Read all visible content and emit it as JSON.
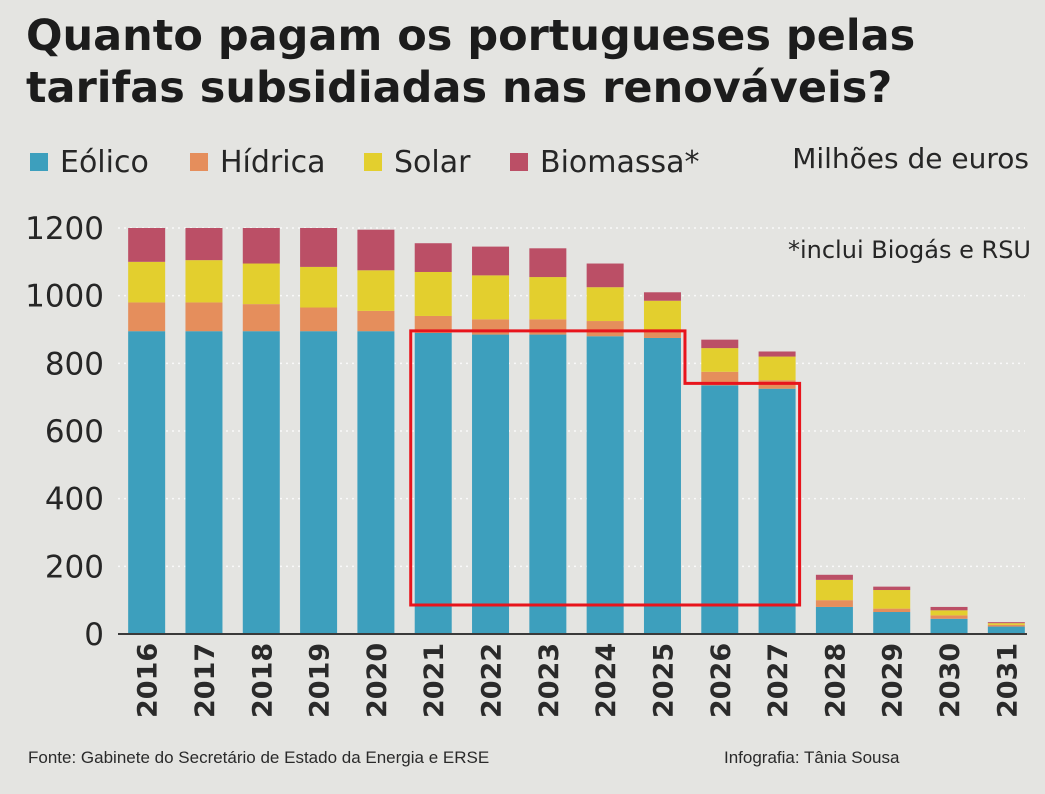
{
  "header": {
    "title_line1": "Quanto pagam os portugueses pelas",
    "title_line2": "tarifas subsidiadas nas renováveis?"
  },
  "unit_label": "Milhões de euros",
  "footnote": "*inclui Biogás e RSU",
  "footer": {
    "source": "Fonte: Gabinete do Secretário de Estado da Energia e ERSE",
    "credit": "Infografia: Tânia Sousa"
  },
  "colors": {
    "eolico": "#3d9fbd",
    "hidrica": "#e58e5c",
    "solar": "#e3cf2e",
    "biomassa": "#bb4f66",
    "highlight": "#e8141c",
    "axis": "#3a3a3a",
    "grid": "#ffffff"
  },
  "chart_data": {
    "type": "bar",
    "stacked": true,
    "title": "Quanto pagam os portugueses pelas tarifas subsidiadas nas renováveis?",
    "ylabel": "Milhões de euros",
    "xlabel": "",
    "ylim": [
      0,
      1200
    ],
    "yticks": [
      0,
      200,
      400,
      600,
      800,
      1000,
      1200
    ],
    "grid": false,
    "legend": "top-left",
    "categories": [
      "2016",
      "2017",
      "2018",
      "2019",
      "2020",
      "2021",
      "2022",
      "2023",
      "2024",
      "2025",
      "2026",
      "2027",
      "2028",
      "2029",
      "2030",
      "2031"
    ],
    "series": [
      {
        "name": "Eólico",
        "color_key": "eolico",
        "values": [
          895,
          895,
          895,
          895,
          895,
          890,
          885,
          885,
          880,
          875,
          735,
          725,
          80,
          65,
          45,
          22
        ]
      },
      {
        "name": "Hídrica",
        "color_key": "hidrica",
        "values": [
          85,
          85,
          80,
          70,
          60,
          50,
          45,
          45,
          45,
          25,
          40,
          25,
          20,
          10,
          10,
          5
        ]
      },
      {
        "name": "Solar",
        "color_key": "solar",
        "values": [
          120,
          125,
          120,
          120,
          120,
          130,
          130,
          125,
          100,
          85,
          70,
          70,
          60,
          55,
          15,
          5
        ]
      },
      {
        "name": "Biomassa*",
        "color_key": "biomassa",
        "values": [
          100,
          95,
          105,
          115,
          120,
          85,
          85,
          85,
          70,
          25,
          25,
          15,
          15,
          10,
          10,
          3
        ]
      }
    ],
    "annotations": [
      {
        "type": "highlight-outline",
        "from": "2021",
        "to": "2027",
        "note": "step outline around Eólico values"
      }
    ]
  }
}
